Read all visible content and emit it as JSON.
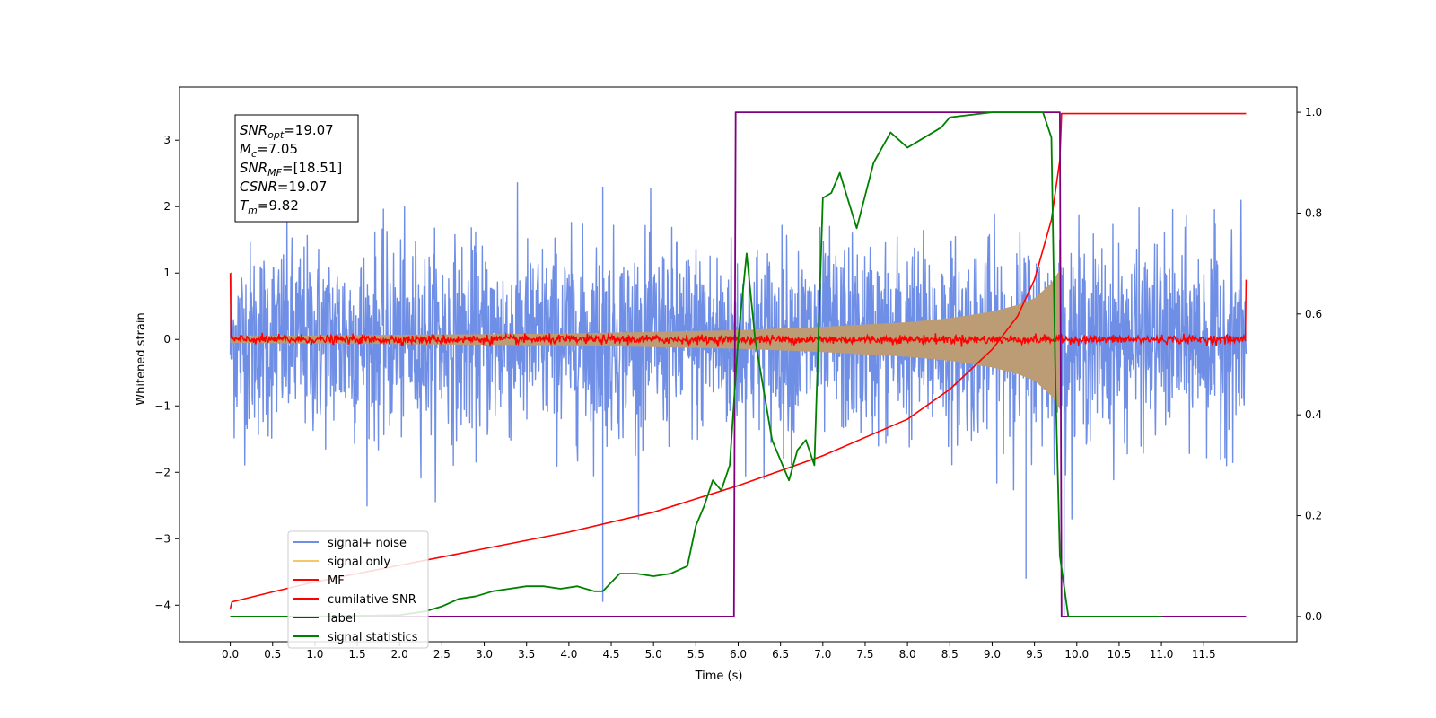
{
  "chart_data": {
    "type": "line",
    "xlabel": "Time (s)",
    "ylabel": "Whitened strain",
    "xlim": [
      -0.6,
      12.6
    ],
    "ylim": [
      -4.55,
      3.8
    ],
    "y2lim": [
      -0.05,
      1.05
    ],
    "xticks": [
      0.0,
      0.5,
      1.0,
      1.5,
      2.0,
      2.5,
      3.0,
      3.5,
      4.0,
      4.5,
      5.0,
      5.5,
      6.0,
      6.5,
      7.0,
      7.5,
      8.0,
      8.5,
      9.0,
      9.5,
      10.0,
      10.5,
      11.0,
      11.5
    ],
    "xtick_labels": [
      "0.0",
      "0.5",
      "1.0",
      "1.5",
      "2.0",
      "2.5",
      "3.0",
      "3.5",
      "4.0",
      "4.5",
      "5.0",
      "5.5",
      "6.0",
      "6.5",
      "7.0",
      "7.5",
      "8.0",
      "8.5",
      "9.0",
      "9.5",
      "10.0",
      "10.5",
      "11.0",
      "11.5"
    ],
    "yticks": [
      -4,
      -3,
      -2,
      -1,
      0,
      1,
      2,
      3
    ],
    "ytick_labels": [
      "−4",
      "−3",
      "−2",
      "−1",
      "0",
      "1",
      "2",
      "3"
    ],
    "y2ticks": [
      0.0,
      0.2,
      0.4,
      0.6,
      0.8,
      1.0
    ],
    "y2tick_labels": [
      "0.0",
      "0.2",
      "0.4",
      "0.6",
      "0.8",
      "1.0"
    ],
    "grid": false,
    "legend_placement": "lower-left",
    "legend": [
      {
        "name": "signal+ noise",
        "color": "#6f8ee6"
      },
      {
        "name": "signal only",
        "color": "#f5c76a"
      },
      {
        "name": "MF",
        "color": "#ff0000"
      },
      {
        "name": "cumilative SNR",
        "color": "#ff0000"
      },
      {
        "name": "label",
        "color": "#800080"
      },
      {
        "name": "signal statistics",
        "color": "#008000"
      }
    ],
    "annotation": {
      "lines": [
        {
          "sym": "SNR",
          "sub": "opt",
          "eq": "=19.07"
        },
        {
          "sym": "M",
          "sub": "c",
          "eq": "=7.05"
        },
        {
          "sym": "SNR",
          "sub": "MF",
          "eq": "=[18.51]"
        },
        {
          "sym": "CSNR",
          "sub": "",
          "eq": "=19.07"
        },
        {
          "sym": "T",
          "sub": "m",
          "eq": "=9.82"
        }
      ]
    },
    "series": [
      {
        "name": "signal+ noise",
        "axis": "left",
        "color": "#6f8ee6",
        "x_range": [
          0.0,
          12.0
        ],
        "noise_band": [
          -1.85,
          2.0
        ],
        "note_peaks": [
          [
            4.4,
            2.3
          ],
          [
            4.4,
            -3.95
          ],
          [
            9.4,
            -3.6
          ],
          [
            9.85,
            -4.15
          ]
        ]
      },
      {
        "name": "signal only",
        "axis": "left",
        "color": "#f5c76a",
        "chirp_envelope": {
          "x": [
            0.0,
            2.0,
            4.0,
            6.0,
            7.0,
            8.0,
            8.5,
            9.0,
            9.3,
            9.5,
            9.7,
            9.8,
            9.82
          ],
          "amp": [
            0.05,
            0.07,
            0.09,
            0.14,
            0.19,
            0.26,
            0.32,
            0.42,
            0.52,
            0.62,
            0.85,
            1.05,
            1.1
          ]
        }
      },
      {
        "name": "MF",
        "axis": "left",
        "color": "#ff0000",
        "x_range": [
          0.0,
          12.0
        ],
        "level": 0.0,
        "jitter": 0.06,
        "edges": {
          "start": 1.0,
          "end": 0.9
        }
      },
      {
        "name": "cumilative SNR",
        "axis": "left",
        "color": "#ff0000",
        "x": [
          0.0,
          0.02,
          0.5,
          1.0,
          2.0,
          3.0,
          4.0,
          5.0,
          6.0,
          7.0,
          8.0,
          8.5,
          9.0,
          9.3,
          9.5,
          9.7,
          9.8,
          9.82,
          12.0
        ],
        "y": [
          -4.05,
          -3.95,
          -3.8,
          -3.65,
          -3.4,
          -3.15,
          -2.9,
          -2.6,
          -2.2,
          -1.75,
          -1.2,
          -0.75,
          -0.15,
          0.35,
          0.9,
          1.8,
          2.7,
          3.4,
          3.4
        ]
      },
      {
        "name": "label",
        "axis": "right",
        "color": "#800080",
        "x": [
          0.0,
          5.95,
          5.97,
          9.8,
          9.82,
          9.9,
          9.92,
          12.0
        ],
        "y": [
          0.0,
          0.0,
          1.0,
          1.0,
          0.0,
          0.0,
          0.0,
          0.0
        ]
      },
      {
        "name": "signal statistics",
        "axis": "right",
        "color": "#008000",
        "x": [
          0.0,
          1.0,
          2.0,
          2.3,
          2.5,
          2.7,
          2.9,
          3.1,
          3.3,
          3.5,
          3.7,
          3.9,
          4.1,
          4.3,
          4.4,
          4.6,
          4.8,
          5.0,
          5.2,
          5.4,
          5.5,
          5.6,
          5.7,
          5.8,
          5.9,
          6.0,
          6.1,
          6.2,
          6.4,
          6.6,
          6.7,
          6.8,
          6.9,
          7.0,
          7.1,
          7.2,
          7.4,
          7.6,
          7.8,
          8.0,
          8.2,
          8.4,
          8.5,
          9.0,
          9.4,
          9.6,
          9.7,
          9.75,
          9.8,
          9.9,
          10.0,
          11.0,
          11.0
        ],
        "y": [
          0.0,
          0.0,
          0.003,
          0.01,
          0.02,
          0.035,
          0.04,
          0.05,
          0.055,
          0.06,
          0.06,
          0.055,
          0.06,
          0.05,
          0.05,
          0.085,
          0.085,
          0.08,
          0.085,
          0.1,
          0.18,
          0.22,
          0.27,
          0.25,
          0.3,
          0.55,
          0.72,
          0.55,
          0.35,
          0.27,
          0.33,
          0.35,
          0.3,
          0.83,
          0.84,
          0.88,
          0.77,
          0.9,
          0.96,
          0.93,
          0.95,
          0.97,
          0.99,
          1.0,
          1.0,
          1.0,
          0.95,
          0.45,
          0.12,
          0.0,
          0.0,
          0.0,
          0.0
        ]
      }
    ]
  }
}
